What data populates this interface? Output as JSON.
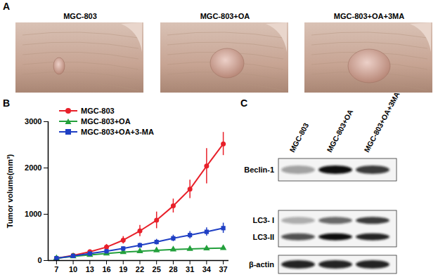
{
  "figure": {
    "panel_labels": [
      "A",
      "B",
      "C"
    ],
    "photos": {
      "labels": [
        "MGC-803",
        "MGC-803+OA",
        "MGC-803+OA+3MA"
      ]
    },
    "blot": {
      "lanes": [
        "MGC-803",
        "MGC-803+OA",
        "MGC-803+OA+3MA"
      ],
      "boxes": [
        {
          "rows": [
            {
              "label": "Beclin-1",
              "intensity": [
                0.35,
                1.0,
                0.8
              ]
            }
          ]
        },
        {
          "rows": [
            {
              "label": "LC3- I",
              "intensity": [
                0.3,
                0.6,
                0.8
              ]
            },
            {
              "label": "LC3-II",
              "intensity": [
                0.7,
                1.0,
                0.9
              ]
            }
          ]
        },
        {
          "rows": [
            {
              "label": "β-actin",
              "intensity": [
                0.9,
                0.9,
                0.9
              ]
            }
          ]
        }
      ]
    }
  },
  "chart_data": {
    "type": "line",
    "y_label": "Tumor volume(mm³)",
    "x": [
      7,
      10,
      13,
      16,
      19,
      22,
      25,
      28,
      31,
      34,
      37
    ],
    "xlim": [
      5.5,
      38
    ],
    "xticks": [
      7,
      10,
      13,
      16,
      19,
      22,
      25,
      28,
      31,
      34,
      37
    ],
    "ylim": [
      0,
      3000
    ],
    "yticks": [
      0,
      1000,
      2000,
      3000
    ],
    "legend": "top-left",
    "series": [
      {
        "name": "MGC-803",
        "color": "#e8202a",
        "marker": "circle",
        "values": [
          50,
          110,
          190,
          290,
          440,
          640,
          870,
          1180,
          1540,
          2040,
          2520
        ],
        "errors": [
          20,
          20,
          40,
          60,
          80,
          120,
          180,
          150,
          200,
          380,
          250
        ]
      },
      {
        "name": "MGC-803+OA",
        "color": "#23a03c",
        "marker": "triangle",
        "values": [
          50,
          90,
          120,
          150,
          180,
          200,
          220,
          240,
          250,
          260,
          270
        ],
        "errors": [
          10,
          10,
          15,
          15,
          20,
          20,
          25,
          25,
          30,
          30,
          40
        ]
      },
      {
        "name": "MGC-803+OA+3-MA",
        "color": "#1f3fc4",
        "marker": "square",
        "values": [
          50,
          100,
          150,
          200,
          260,
          330,
          400,
          480,
          550,
          620,
          700
        ],
        "errors": [
          10,
          15,
          20,
          30,
          40,
          50,
          60,
          70,
          80,
          90,
          110
        ]
      }
    ]
  }
}
